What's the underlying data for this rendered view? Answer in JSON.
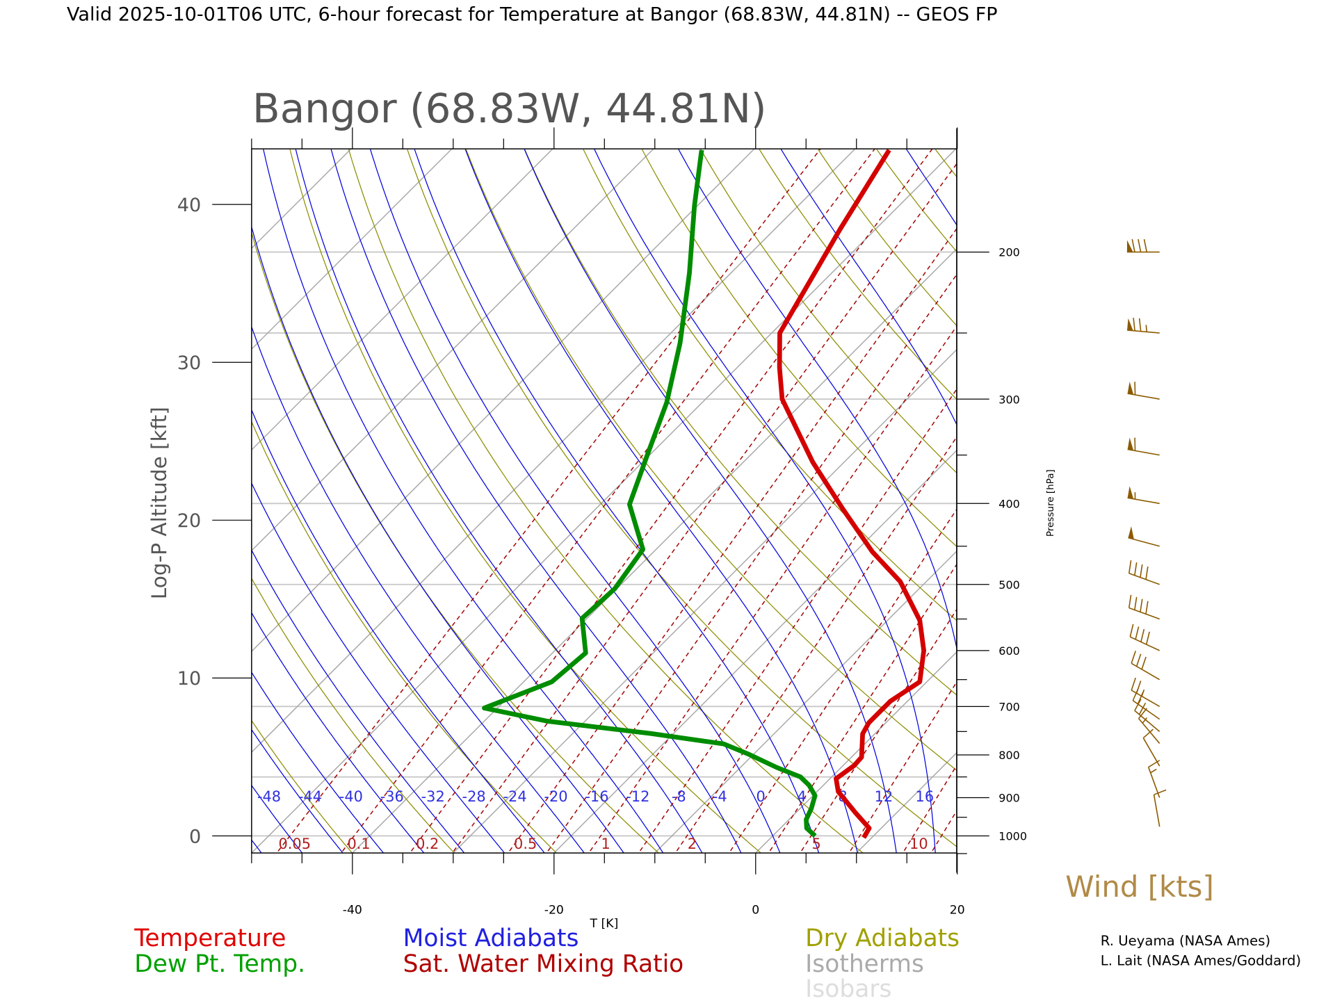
{
  "header": {
    "title": "Valid 2025-10-01T06 UTC, 6-hour forecast for Temperature at Bangor (68.83W, 44.81N) -- GEOS FP"
  },
  "chart_data": {
    "type": "line",
    "subtype": "skew-T log-P diagram",
    "title": "Bangor (68.83W, 44.81N)",
    "xlabel": "T [K]",
    "ylabel_left": "Log-P Altitude [kft]",
    "ylabel_right": "Pressure [hPa]",
    "x_ticks": [
      -40,
      -20,
      0,
      20
    ],
    "xlim": [
      -50,
      20
    ],
    "pressure_range_hPa": [
      1048,
      150
    ],
    "altitude_ticks_kft": [
      0,
      10,
      20,
      30,
      40
    ],
    "pressure_ticks_hPa": [
      1000,
      900,
      800,
      700,
      600,
      500,
      400,
      300,
      200
    ],
    "isobars_hPa": [
      1000,
      850,
      700,
      500,
      400,
      300,
      250,
      200
    ],
    "isotherm_step_C": 10,
    "dry_adiabats_theta_K": [
      230,
      240,
      250,
      260,
      270,
      280,
      290,
      300,
      310,
      320,
      330,
      340,
      350,
      360,
      370,
      380,
      390,
      400,
      410,
      420,
      430,
      440,
      450,
      460,
      470,
      480
    ],
    "moist_adiabat_labels": [
      -48,
      -44,
      -40,
      -36,
      -32,
      -28,
      -24,
      -20,
      -16,
      -12,
      -8,
      -4,
      0,
      4,
      8,
      12,
      16
    ],
    "mixing_ratio_lines": [
      0.05,
      0.1,
      0.2,
      0.3,
      0.5,
      0.7,
      1,
      1.5,
      2,
      3,
      4,
      5,
      7,
      10,
      12,
      15,
      20
    ],
    "mixing_ratio_labels": [
      "0.05",
      "0.1",
      "0.2",
      "0.5",
      "1",
      "2",
      "5",
      "10"
    ],
    "series": [
      {
        "name": "Temperature",
        "color": "#d40000",
        "pressure": [
          1005,
          979,
          938,
          885,
          854,
          824,
          805,
          755,
          732,
          690,
          654,
          600,
          552,
          496,
          457,
          406,
          357,
          300,
          275,
          250,
          188,
          151
        ],
        "temperature": [
          9.2,
          8.8,
          5.9,
          2.1,
          0.6,
          1.1,
          1.0,
          -1.2,
          -1.7,
          -1.7,
          -0.7,
          -3.4,
          -6.8,
          -12.6,
          -18.3,
          -25.5,
          -33.1,
          -42.4,
          -45.8,
          -49.2,
          -53.5,
          -56.5
        ]
      },
      {
        "name": "Dew Pt. Temp.",
        "color": "#008c00",
        "pressure": [
          1000,
          979,
          956,
          927,
          895,
          870,
          850,
          828,
          799,
          776,
          754,
          729,
          703,
          654,
          604,
          549,
          506,
          454,
          401,
          349,
          303,
          257,
          212,
          176,
          151
        ],
        "temperature": [
          4.2,
          2.6,
          1.7,
          1.1,
          0.2,
          -1.4,
          -3.1,
          -6.4,
          -10.4,
          -14.0,
          -22.3,
          -33.7,
          -41.3,
          -37.2,
          -36.7,
          -40.5,
          -40.2,
          -41.3,
          -47.1,
          -50.3,
          -53.5,
          -58.1,
          -64.1,
          -70.3,
          -75.1
        ]
      }
    ],
    "wind": {
      "label": "Wind [kts]",
      "color": "#8b5a00",
      "pressure": [
        200,
        250,
        300,
        350,
        400,
        450,
        500,
        550,
        600,
        650,
        700,
        725,
        750,
        775,
        825,
        900,
        975
      ],
      "speed_kts": [
        80,
        75,
        60,
        60,
        55,
        50,
        40,
        40,
        40,
        30,
        25,
        20,
        20,
        15,
        10,
        15,
        10
      ],
      "direction_deg": [
        270,
        275,
        280,
        280,
        280,
        285,
        290,
        290,
        295,
        300,
        300,
        305,
        310,
        320,
        330,
        340,
        350
      ]
    },
    "legend": {
      "temperature": "Temperature",
      "dewpoint": "Dew Pt. Temp.",
      "moist": "Moist Adiabats",
      "mixing": "Sat. Water Mixing Ratio",
      "dry": "Dry Adiabats",
      "isotherms": "Isotherms",
      "isobars": "Isobars"
    },
    "colors": {
      "moist": "#0000dd",
      "dry": "#8c8c00",
      "mixing": "#a00000",
      "isotherms": "#a8a8a8",
      "isobars": "#c8c8c8"
    }
  },
  "credits": {
    "line1": "R. Ueyama (NASA Ames)",
    "line2": "L. Lait (NASA Ames/Goddard)"
  }
}
